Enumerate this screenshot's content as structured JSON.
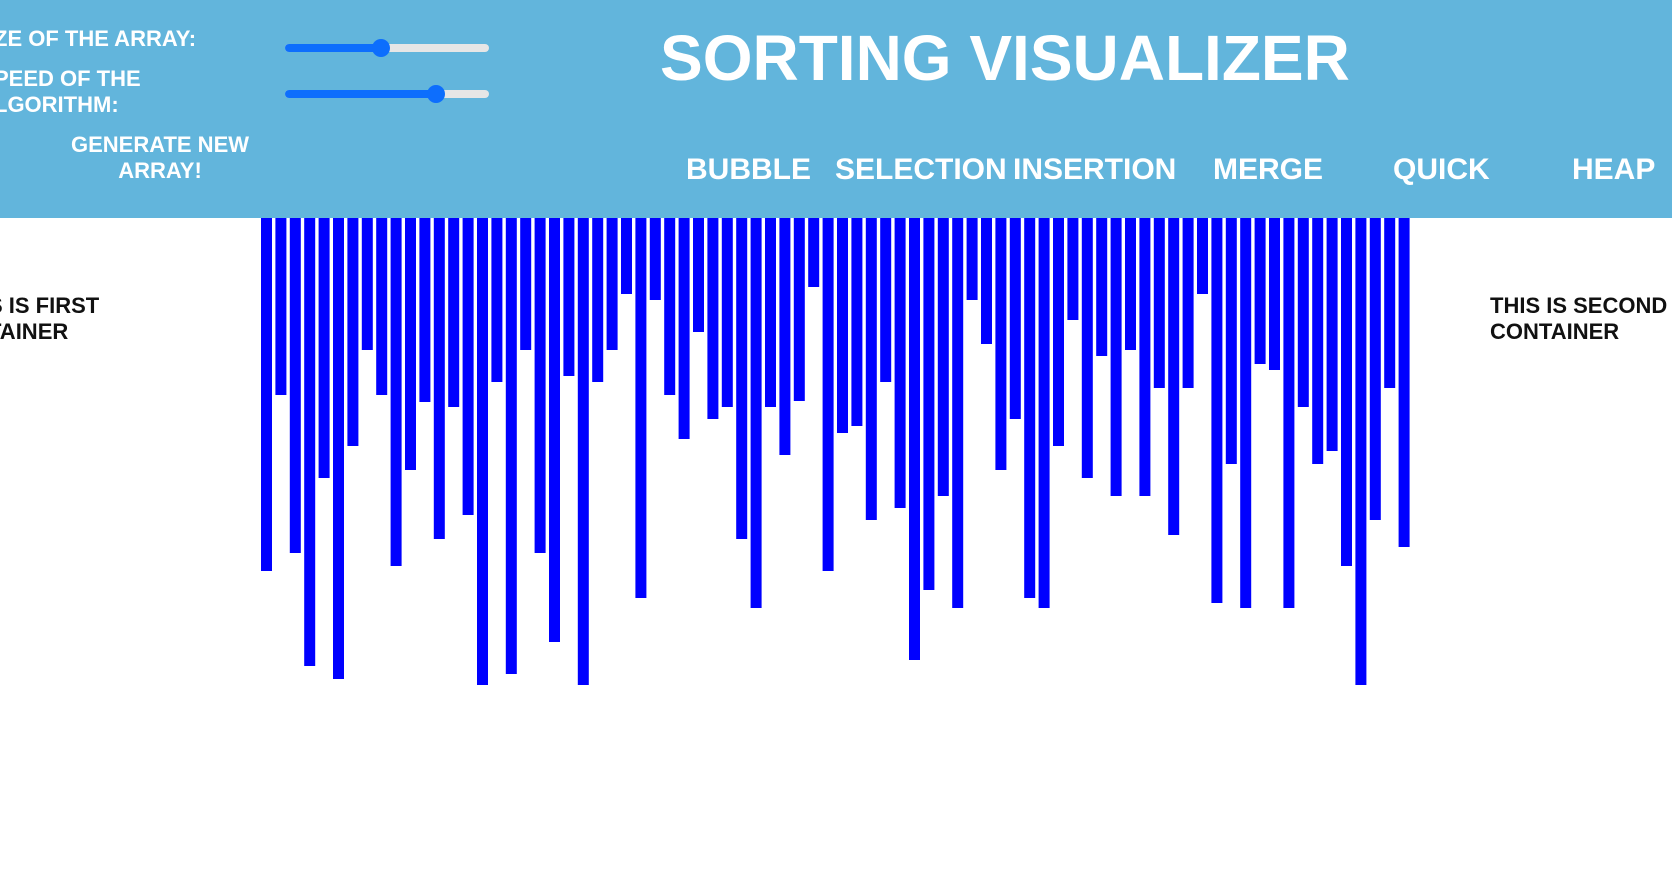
{
  "header": {
    "title": "SORTING VISUALIZER",
    "size_label": "ZE OF THE ARRAY:",
    "speed_label": "PEED OF THE\nLGORITHM:",
    "generate_label": "GENERATE NEW ARRAY!",
    "size_slider_value": 0.47,
    "speed_slider_value": 0.74,
    "background_color": "#62b5dc",
    "slider_color": "#0d6efd"
  },
  "algorithms": [
    {
      "label": "BUBBLE"
    },
    {
      "label": "SELECTION"
    },
    {
      "label": "INSERTION"
    },
    {
      "label": "MERGE"
    },
    {
      "label": "QUICK"
    },
    {
      "label": "HEAP"
    }
  ],
  "containers": {
    "first": "S IS FIRST\nTAINER",
    "second": "THIS IS SECOND\nCONTAINER"
  },
  "array": {
    "bar_color": "#0000ff",
    "values": [
      353,
      177,
      335,
      448,
      260,
      461,
      228,
      132,
      177,
      348,
      252,
      184,
      321,
      189,
      297,
      467,
      164,
      456,
      132,
      335,
      424,
      158,
      467,
      164,
      132,
      76,
      380,
      82,
      177,
      221,
      114,
      201,
      189,
      321,
      390,
      189,
      237,
      183,
      69,
      353,
      215,
      208,
      302,
      164,
      290,
      442,
      372,
      278,
      390,
      82,
      126,
      252,
      201,
      380,
      390,
      228,
      102,
      260,
      138,
      278,
      132,
      278,
      170,
      317,
      170,
      76,
      385,
      246,
      390,
      146,
      152,
      390,
      189,
      246,
      233,
      348,
      467,
      302,
      170,
      329
    ]
  }
}
